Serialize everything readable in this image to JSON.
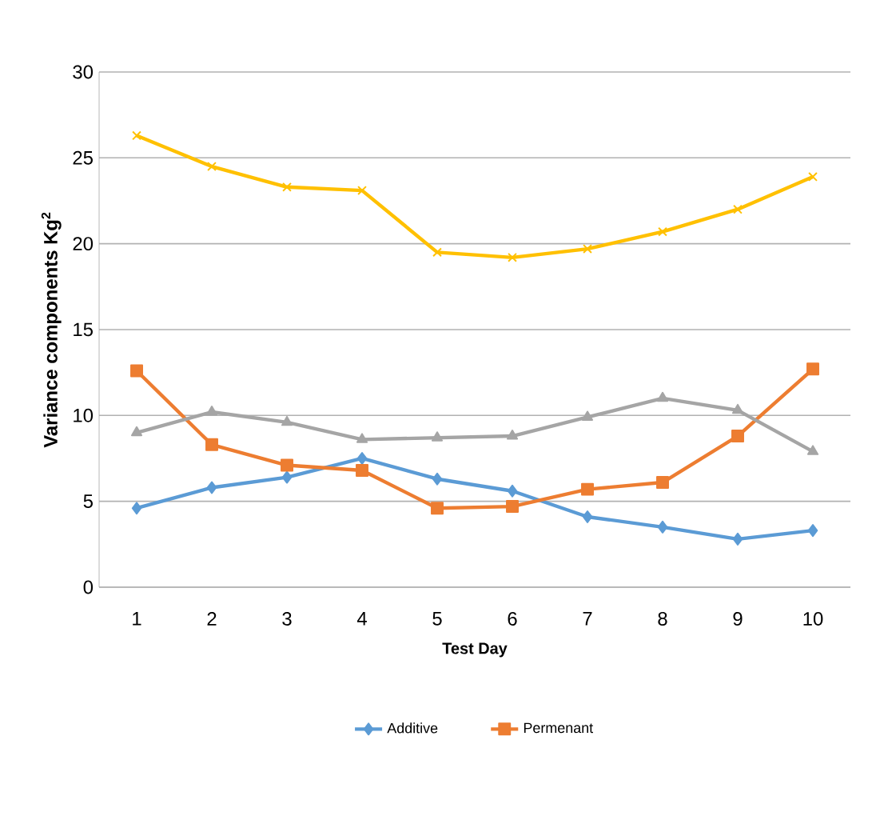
{
  "chart_data": {
    "type": "line",
    "xlabel": "Test Day",
    "ylabel": "Variance components Kg$^{2}$",
    "categories": [
      "1",
      "2",
      "3",
      "4",
      "5",
      "6",
      "7",
      "8",
      "9",
      "10"
    ],
    "series": [
      {
        "name": "Additive",
        "color": "#5b9bd5",
        "marker": "diamond",
        "values": [
          4.6,
          5.8,
          6.4,
          7.5,
          6.3,
          5.6,
          4.1,
          3.5,
          2.8,
          3.3
        ]
      },
      {
        "name": "Permenant",
        "color": "#ed7d31",
        "marker": "square",
        "values": [
          12.6,
          8.3,
          7.1,
          6.8,
          4.6,
          4.7,
          5.7,
          6.1,
          8.8,
          12.7
        ]
      },
      {
        "color": "#a5a5a5",
        "marker": "triangle",
        "values": [
          9.0,
          10.2,
          9.6,
          8.6,
          8.7,
          8.8,
          9.9,
          11.0,
          10.3,
          7.9
        ]
      },
      {
        "color": "#ffc000",
        "marker": "cross",
        "values": [
          26.3,
          24.5,
          23.3,
          23.1,
          19.5,
          19.2,
          19.7,
          20.7,
          22.0,
          23.9
        ]
      }
    ],
    "ylim": [
      0,
      30
    ],
    "yticks": [
      0,
      5,
      10,
      15,
      20,
      25,
      30
    ],
    "grid": "y",
    "legend": "bottom"
  }
}
